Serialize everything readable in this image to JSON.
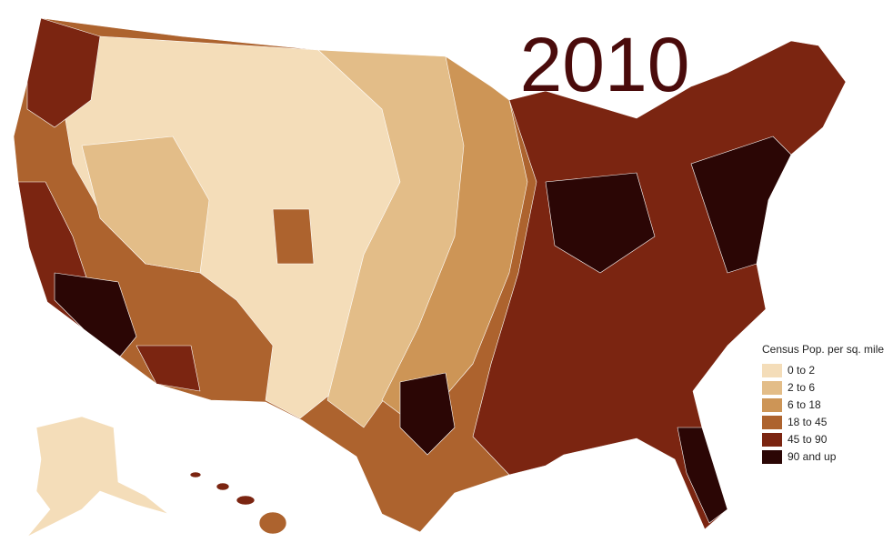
{
  "title": "2010",
  "legend": {
    "title": "Census Pop. per sq. mile",
    "items": [
      {
        "label": "0 to 2",
        "color": "#f4ddb9"
      },
      {
        "label": "2 to 6",
        "color": "#e3bd88"
      },
      {
        "label": "6 to 18",
        "color": "#cd9556"
      },
      {
        "label": "18 to 45",
        "color": "#ad632e"
      },
      {
        "label": "45 to 90",
        "color": "#7b2511"
      },
      {
        "label": "90 and up",
        "color": "#2b0605"
      }
    ]
  }
}
